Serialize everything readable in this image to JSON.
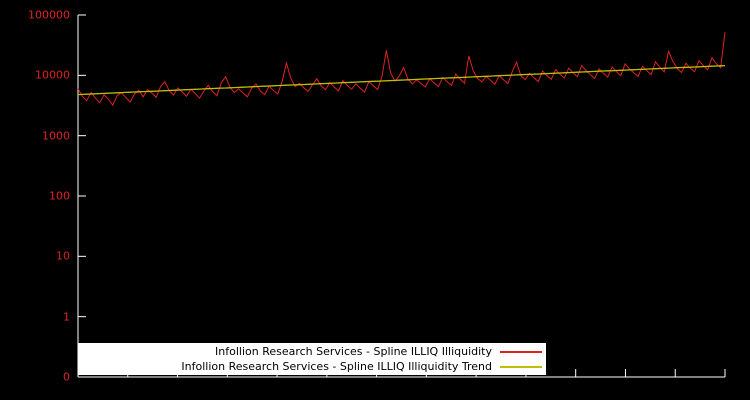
{
  "window": {
    "background": "#000000"
  },
  "chart_data": {
    "type": "line",
    "title": "",
    "xlabel": "",
    "ylabel": "",
    "y_axis": {
      "scale": "log",
      "top_value": 100000,
      "decades": 6,
      "tick_labels": [
        "100000",
        "10000",
        "1000",
        "100",
        "10",
        "1",
        "0"
      ],
      "label_color": "#dd2222",
      "axis_color": "#ffffff"
    },
    "x_axis": {
      "tick_labels": [],
      "tick_count": 14,
      "axis_color": "#ffffff"
    },
    "series": [
      {
        "name": "Infollion Research Services - Spline ILLIQ Illiquidity",
        "color": "#dd2222",
        "values": [
          6000,
          4500,
          3800,
          5200,
          4200,
          3500,
          4800,
          4000,
          3200,
          4600,
          5200,
          4300,
          3600,
          4900,
          5600,
          4400,
          5800,
          5100,
          4300,
          6500,
          7800,
          5600,
          4700,
          6200,
          5300,
          4500,
          5900,
          5000,
          4200,
          5500,
          6800,
          5400,
          4600,
          7500,
          9500,
          6300,
          5200,
          6000,
          5100,
          4400,
          6100,
          7200,
          5500,
          4800,
          6600,
          5600,
          4900,
          7800,
          16000,
          9000,
          6500,
          7400,
          6200,
          5400,
          7000,
          8800,
          6600,
          5800,
          7600,
          6400,
          5500,
          8200,
          6800,
          5900,
          7200,
          6100,
          5300,
          7900,
          6700,
          5800,
          9500,
          26000,
          11000,
          8000,
          9800,
          13500,
          8600,
          7200,
          8400,
          7300,
          6400,
          8800,
          7500,
          6500,
          9200,
          7800,
          6800,
          10500,
          8700,
          7400,
          21000,
          12000,
          8900,
          7800,
          9600,
          8200,
          7100,
          9900,
          8400,
          7300,
          11500,
          16500,
          9800,
          8500,
          10800,
          9100,
          7900,
          11800,
          9900,
          8600,
          12500,
          10400,
          9000,
          13200,
          11000,
          9500,
          14500,
          12000,
          10200,
          8900,
          12800,
          10800,
          9400,
          13800,
          11500,
          9900,
          15500,
          12800,
          11000,
          9600,
          14200,
          11900,
          10300,
          16800,
          13500,
          11400,
          25000,
          17000,
          13000,
          11200,
          15800,
          13200,
          11500,
          17500,
          14500,
          12400,
          19500,
          15500,
          13400,
          52000
        ]
      },
      {
        "name": "Infollion Research Services - Spline ILLIQ Illiquidity Trend",
        "color": "#bfbf00",
        "trend": {
          "type": "exponential",
          "start": 4800,
          "end": 14500
        }
      }
    ],
    "legend": {
      "position": "bottom-center",
      "background": "#ffffff",
      "text_color": "#000000"
    }
  }
}
